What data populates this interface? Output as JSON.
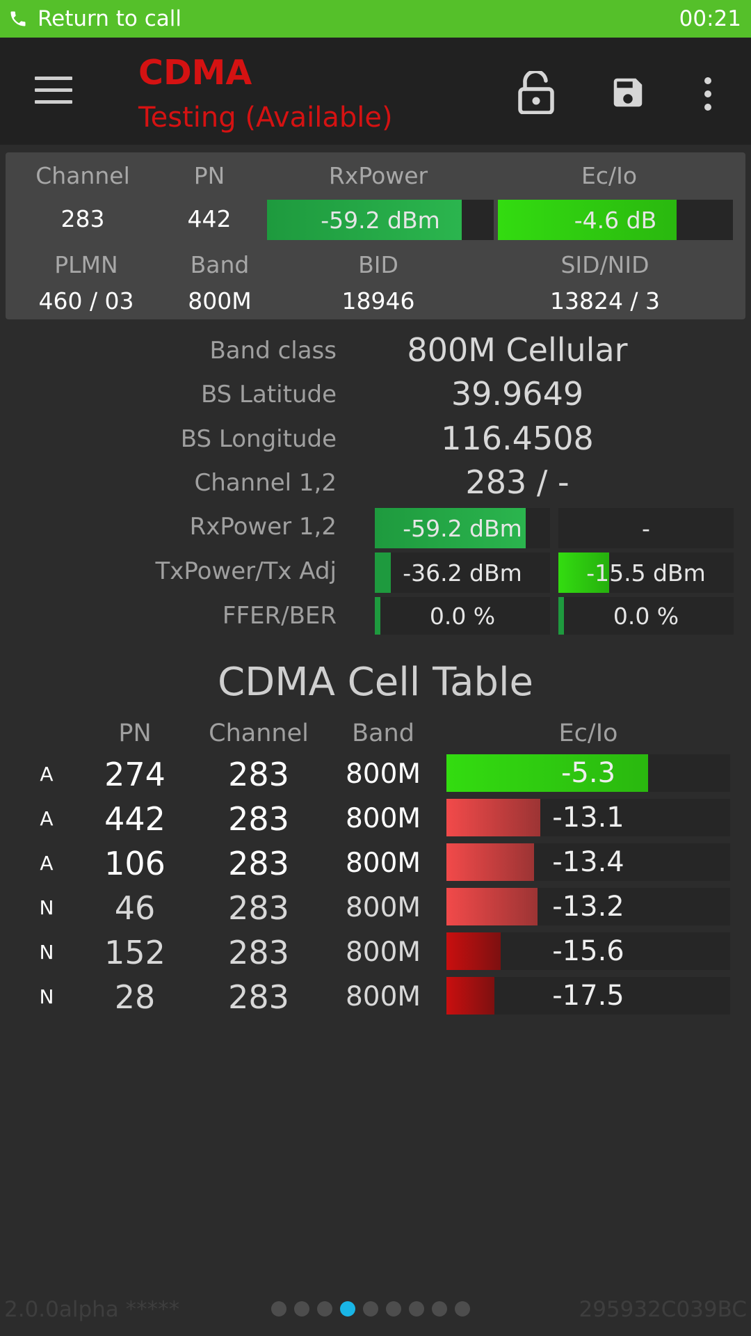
{
  "call_bar": {
    "label": "Return to call",
    "time": "00:21",
    "color": "#55c02a"
  },
  "app_bar": {
    "title": "CDMA",
    "subtitle": "Testing (Available)",
    "accent": "#d51212",
    "icons": [
      "menu-icon",
      "lock-open-icon",
      "save-icon",
      "more-vert-icon"
    ]
  },
  "summary": {
    "channel_label": "Channel",
    "channel": "283",
    "pn_label": "PN",
    "pn": "442",
    "rxpower_label": "RxPower",
    "rxpower": "-59.2 dBm",
    "rxpower_level": 0.86,
    "ecio_label": "Ec/Io",
    "ecio": "-4.6 dB",
    "ecio_level": 0.76,
    "plmn_label": "PLMN",
    "plmn": "460 / 03",
    "band_label": "Band",
    "band": "800M",
    "bid_label": "BID",
    "bid": "18946",
    "sidnid_label": "SID/NID",
    "sidnid": "13824 / 3"
  },
  "details": {
    "band_class_label": "Band class",
    "band_class": "800M Cellular",
    "bs_lat_label": "BS Latitude",
    "bs_lat": "39.9649",
    "bs_lon_label": "BS Longitude",
    "bs_lon": "116.4508",
    "channel12_label": "Channel 1,2",
    "channel12": "283 / -",
    "rxpower12_label": "RxPower 1,2",
    "rxpower1": "-59.2 dBm",
    "rxpower1_level": 0.86,
    "rxpower2": "-",
    "rxpower2_level": 0,
    "txpower_label": "TxPower/Tx Adj",
    "txpower": "-36.2 dBm",
    "txpower_level": 0.09,
    "txadj": "-15.5 dBm",
    "txadj_level": 0.29,
    "ffer_label": "FFER/BER",
    "ffer": "0.0 %",
    "ffer_level": 0.03,
    "ber": "0.0 %",
    "ber_level": 0.03
  },
  "cell_table": {
    "title": "CDMA Cell Table",
    "headers": {
      "pn": "PN",
      "channel": "Channel",
      "band": "Band",
      "ecio": "Ec/Io"
    },
    "rows": [
      {
        "type": "A",
        "pn": "274",
        "channel": "283",
        "band": "800M",
        "ecio": "-5.3",
        "level": 0.71,
        "quality": "good"
      },
      {
        "type": "A",
        "pn": "442",
        "channel": "283",
        "band": "800M",
        "ecio": "-13.1",
        "level": 0.33,
        "quality": "fair"
      },
      {
        "type": "A",
        "pn": "106",
        "channel": "283",
        "band": "800M",
        "ecio": "-13.4",
        "level": 0.31,
        "quality": "fair"
      },
      {
        "type": "N",
        "pn": "46",
        "channel": "283",
        "band": "800M",
        "ecio": "-13.2",
        "level": 0.32,
        "quality": "fair"
      },
      {
        "type": "N",
        "pn": "152",
        "channel": "283",
        "band": "800M",
        "ecio": "-15.6",
        "level": 0.19,
        "quality": "poor"
      },
      {
        "type": "N",
        "pn": "28",
        "channel": "283",
        "band": "800M",
        "ecio": "-17.5",
        "level": 0.17,
        "quality": "poor"
      }
    ]
  },
  "footer": {
    "version": "2.0.0alpha *****",
    "device_id": "295932C039BC",
    "page_count": 9,
    "active_page": 4,
    "active_dot_color": "#19b5e6"
  }
}
